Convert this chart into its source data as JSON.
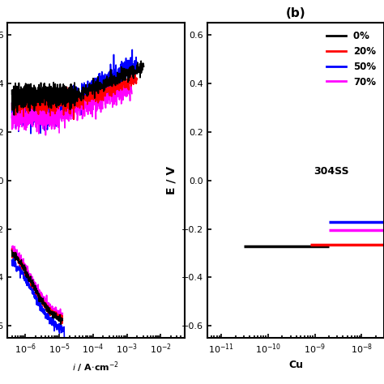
{
  "title_b": "(b)",
  "ylabel": "E / V",
  "xlabel_right": "Cu",
  "colors": [
    "black",
    "red",
    "blue",
    "magenta"
  ],
  "labels": [
    "0% ",
    "20%",
    "50%",
    "70%"
  ],
  "extra_label": "304SS",
  "panel_b_xlim": [
    5e-12,
    3e-08
  ],
  "panel_b_ylim": [
    -0.65,
    0.65
  ],
  "panel_a_xlim": [
    3e-07,
    0.05
  ],
  "panel_a_ylim": [
    -0.65,
    0.65
  ],
  "yticks": [
    -0.6,
    -0.4,
    -0.2,
    0.0,
    0.2,
    0.4,
    0.6
  ]
}
